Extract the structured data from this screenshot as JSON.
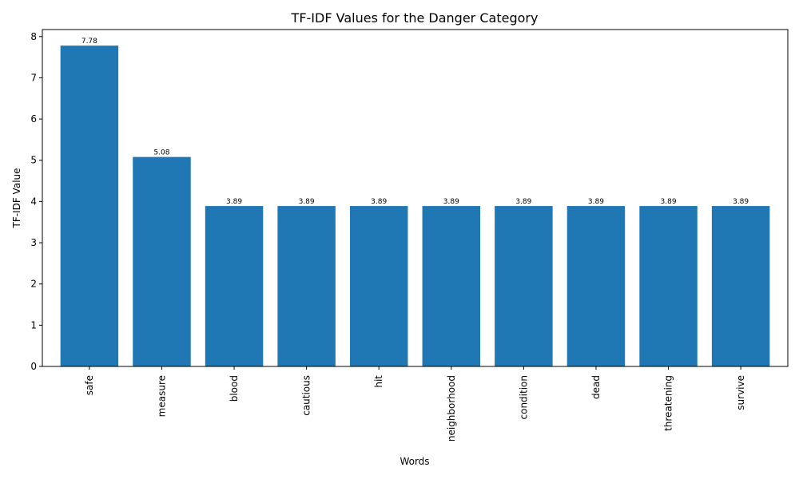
{
  "chart_data": {
    "type": "bar",
    "title": "TF-IDF Values for the Danger Category",
    "xlabel": "Words",
    "ylabel": "TF-IDF Value",
    "categories": [
      "safe",
      "measure",
      "blood",
      "cautious",
      "hit",
      "neighborhood",
      "condition",
      "dead",
      "threatening",
      "survive"
    ],
    "values": [
      7.78,
      5.08,
      3.89,
      3.89,
      3.89,
      3.89,
      3.89,
      3.89,
      3.89,
      3.89
    ],
    "value_labels": [
      "7.78",
      "5.08",
      "3.89",
      "3.89",
      "3.89",
      "3.89",
      "3.89",
      "3.89",
      "3.89",
      "3.89"
    ],
    "ylim": [
      0,
      8.17
    ],
    "yticks": [
      0,
      1,
      2,
      3,
      4,
      5,
      6,
      7,
      8
    ],
    "grid": false,
    "legend": "none",
    "bar_color": "#1f77b4",
    "xtick_rotation": 90
  }
}
